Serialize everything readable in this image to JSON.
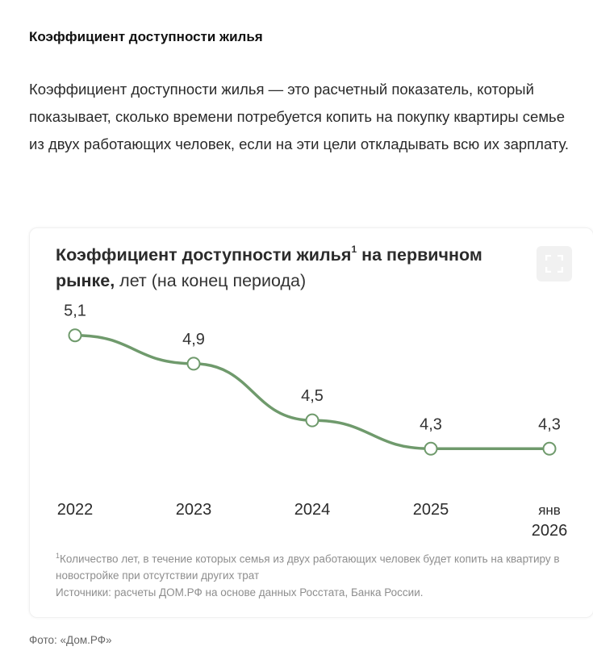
{
  "article": {
    "heading": "Коэффициент доступности жилья",
    "paragraph": "Коэффициент доступности жилья — это расчетный показатель, который показывает, сколько времени потребуется копить на покупку квартиры семье из двух работающих человек, если на эти цели откладывать всю их зарплату."
  },
  "chart_card": {
    "title_bold": "Коэффициент доступности жилья",
    "title_sup": "1",
    "title_bold_2": " на первичном рынке,",
    "title_regular": " лет (на конец периода)",
    "footnote_marker": "1",
    "footnote_text": "Количество лет, в течение которых семья из двух работающих человек будет копить на квартиру в новостройке при отсутствии других трат",
    "sources": "Источники: расчеты ДОМ.РФ на основе данных Росстата, Банка России.",
    "expand_icon": "expand-icon"
  },
  "chart_data": {
    "type": "line",
    "title": "Коэффициент доступности жилья на первичном рынке, лет (на конец периода)",
    "categories": [
      "2022",
      "2023",
      "2024",
      "2025",
      "янв 2026"
    ],
    "category_lines": [
      [
        "2022"
      ],
      [
        "2023"
      ],
      [
        "2024"
      ],
      [
        "2025"
      ],
      [
        "янв",
        "2026"
      ]
    ],
    "values": [
      5.1,
      4.9,
      4.5,
      4.3,
      4.3
    ],
    "value_labels": [
      "5,1",
      "4,9",
      "4,5",
      "4,3",
      "4,3"
    ],
    "ylim": [
      4.0,
      5.4
    ],
    "xlabel": "",
    "ylabel": "",
    "grid": false,
    "line_color": "#6f9a6c",
    "marker_fill": "#ffffff",
    "marker_stroke": "#6f9a6c"
  },
  "photo_caption": "Фото: «Дом.РФ»"
}
